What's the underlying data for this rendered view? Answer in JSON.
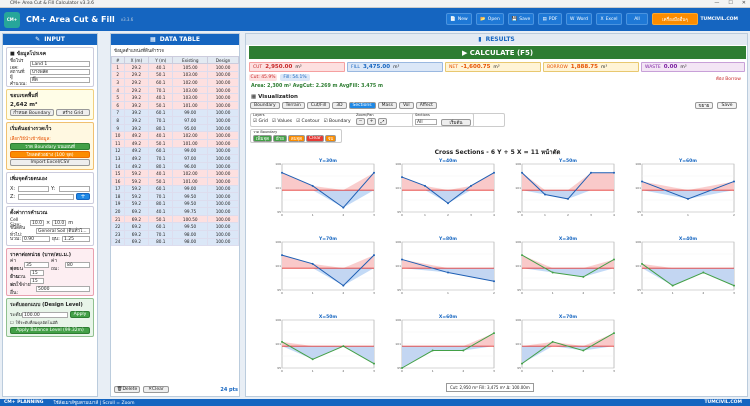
{
  "window": {
    "title": "CM+ Area Cut & Fill Calculator v3.3.6"
  },
  "app": {
    "title": "CM+ Area Cut & Fill",
    "version": "v3.3.6",
    "site": "TUMCIVIL.COM"
  },
  "toolbar": {
    "new": "New",
    "open": "Open",
    "save": "Save",
    "pdf": "PDF",
    "word": "Word",
    "excel": "Excel",
    "all": "All",
    "pro": "เครื่องมืออื่นๆ"
  },
  "left": {
    "header": "INPUT",
    "project": {
      "title": "ข้อมูลโปรเจค",
      "name_label": "ชื่อโปรเจค:",
      "name_value": "Land 1",
      "place_label": "สถานที่:",
      "place_value": "บางพลัด",
      "owner_label": "ผู้คำนวณ:",
      "owner_value": "ดิ๊ด"
    },
    "boundary": {
      "title": "ขอบเขตพื้นที่",
      "area": "2,642 m²",
      "btn1": "กำหนด Boundary",
      "btn2": "สร้าง Grid"
    },
    "import": {
      "title": "เริ่มต้นอย่างรวดเร็ว",
      "hint": "เลือกวิธีนำเข้าข้อมูล:",
      "btn1": "วาด Boundary บนแผนที่",
      "btn2": "โหลดตัวอย่าง (100 จุด)",
      "btn3": "Import Excel/CSV"
    },
    "addpoint": {
      "title": "เพิ่มจุดด้วยตนเอง",
      "x": "X:",
      "y": "Y:",
      "z": "Z:"
    },
    "grid": {
      "title": "ตั้งค่าการคำนวณ",
      "cell_label": "Cell Size:",
      "cell1": "10.0",
      "cell2": "10.0",
      "unit": "m",
      "soil_label": "ชนิดดินทั่วไป:",
      "soil_value": "General Soil (ดินทั่วไ...",
      "swell_label": "บวม:",
      "swell_value": "0.90",
      "shrink_label": "ยุบ:",
      "shrink_value": "1.25"
    },
    "cost": {
      "title": "ราคาต่อหน่วย (บาท/ลบ.ม.)",
      "cut_label": "ค่าขุด:",
      "cut_value": "35",
      "fill_label": "ค่าถม:",
      "fill_value": "80",
      "haul_label": "ค่าขนย้าย:",
      "haul_value": "15",
      "truck_label": "จำนวนรถ:",
      "truck_value": "15",
      "other_label": "ค่าใช้จ่ายอื่น:",
      "other_value": "5000"
    },
    "design": {
      "title": "ระดับออกแบบ (Design Level)",
      "level_label": "ระดับ:",
      "level_value": "100.00",
      "apply": "Apply",
      "check": "ใช้ระดับที่สมดุลอัตโนมัติ",
      "balance": "Apply Balance Level (99.32m)"
    }
  },
  "data": {
    "header": "DATA TABLE",
    "subtitle": "ข้อมูลตำแหน่งที่ดินสำรวจ",
    "cols": [
      "#",
      "X (m)",
      "Y (m)",
      "Existing",
      "Design"
    ],
    "rows": [
      [
        "1",
        "29.2",
        "40.1",
        "105.00",
        "100.00"
      ],
      [
        "2",
        "29.2",
        "50.1",
        "103.00",
        "100.00"
      ],
      [
        "3",
        "29.2",
        "60.1",
        "102.00",
        "100.00"
      ],
      [
        "4",
        "29.2",
        "70.1",
        "103.00",
        "100.00"
      ],
      [
        "5",
        "39.2",
        "40.1",
        "103.00",
        "100.00"
      ],
      [
        "6",
        "39.2",
        "50.1",
        "101.00",
        "100.00"
      ],
      [
        "7",
        "39.2",
        "60.1",
        "99.00",
        "100.00"
      ],
      [
        "8",
        "39.2",
        "70.1",
        "97.00",
        "100.00"
      ],
      [
        "9",
        "39.2",
        "80.1",
        "95.00",
        "100.00"
      ],
      [
        "10",
        "49.2",
        "40.1",
        "102.00",
        "100.00"
      ],
      [
        "11",
        "49.2",
        "50.1",
        "101.00",
        "100.00"
      ],
      [
        "12",
        "49.2",
        "60.1",
        "99.00",
        "100.00"
      ],
      [
        "13",
        "49.2",
        "70.1",
        "97.00",
        "100.00"
      ],
      [
        "14",
        "49.2",
        "80.1",
        "96.00",
        "100.00"
      ],
      [
        "15",
        "59.2",
        "40.1",
        "102.00",
        "100.00"
      ],
      [
        "16",
        "59.2",
        "50.1",
        "101.00",
        "100.00"
      ],
      [
        "17",
        "59.2",
        "60.1",
        "99.00",
        "100.00"
      ],
      [
        "18",
        "59.2",
        "70.1",
        "99.50",
        "100.00"
      ],
      [
        "19",
        "59.2",
        "80.1",
        "99.50",
        "100.00"
      ],
      [
        "20",
        "69.2",
        "40.1",
        "99.75",
        "100.00"
      ],
      [
        "21",
        "69.2",
        "50.1",
        "100.50",
        "100.00"
      ],
      [
        "22",
        "69.2",
        "60.1",
        "99.50",
        "100.00"
      ],
      [
        "23",
        "69.2",
        "70.1",
        "98.00",
        "100.00"
      ],
      [
        "24",
        "69.2",
        "80.1",
        "98.00",
        "100.00"
      ]
    ],
    "delete": "Delete",
    "clear": "Clear",
    "count": "24 pts"
  },
  "results": {
    "header": "RESULTS",
    "calc": "CALCULATE (F5)",
    "cut": {
      "label": "CUT",
      "value": "2,950.00",
      "unit": "m³"
    },
    "fill": {
      "label": "FILL",
      "value": "3,475.00",
      "unit": "m³"
    },
    "net": {
      "label": "NET",
      "value": "-1,600.75",
      "unit": "m³"
    },
    "borrow": {
      "label": "BORROW",
      "value": "1,888.75",
      "unit": "m³"
    },
    "waste": {
      "label": "WASTE",
      "value": "0.00",
      "unit": "m³"
    },
    "cutpct": "Cut: 45.9%",
    "fillpct": "Fill: 54.1%",
    "balance_note": "ต้อง Borrow",
    "summary": "Area: 2,300 m²    AvgCut: 2.269 m    AvgFill: 3.475 m",
    "viz": "Visualization",
    "tabs": [
      "Boundary",
      "Terrain",
      "Cut/Fill",
      "3D",
      "Sections",
      "Mass",
      "Vol",
      "Affect"
    ],
    "zoom": "ขยาย",
    "save": "Save",
    "layers_label": "Layers",
    "layers": [
      "Grid",
      "Values",
      "Contour",
      "Boundary"
    ],
    "zoompan": "Zoom/Pan",
    "sections_label": "Sections",
    "sections_value": "All",
    "reset": "เริ่มต้น",
    "draw_label": "วาด Boundary",
    "draw_btns": [
      "เพิ่มจุด",
      "ย้าย",
      "ลบจุด",
      "Clear",
      "จบ"
    ],
    "chart_title": "Cross Sections - 6 Y + 5 X = 11 หน้าตัด",
    "footer": "Cut: 2,950 m³   Fill: 3,475 m³   Δ: 100.00m"
  },
  "status": {
    "app": "CM+ PLANNING",
    "hint": "ใช้ล้อเมาส์ซูมตามเมาส์ | Scroll = Zoom",
    "site": "TUMCIVIL.COM"
  },
  "chart_data": [
    {
      "type": "line",
      "title": "Y=30m",
      "x": [
        0,
        1,
        2,
        3
      ],
      "series": [
        {
          "values": [
            104,
            101,
            96,
            104
          ]
        }
      ],
      "design": 100,
      "ylim": [
        95,
        106
      ]
    },
    {
      "type": "line",
      "title": "Y=40m",
      "x": [
        0,
        1,
        2,
        3,
        4
      ],
      "series": [
        {
          "values": [
            103,
            101,
            97,
            101,
            104
          ]
        }
      ],
      "design": 100,
      "ylim": [
        95,
        106
      ]
    },
    {
      "type": "line",
      "title": "Y=50m",
      "x": [
        0,
        1,
        2,
        3,
        4
      ],
      "series": [
        {
          "values": [
            104,
            99,
            98,
            104,
            104
          ]
        }
      ],
      "design": 100,
      "ylim": [
        95,
        106
      ]
    },
    {
      "type": "line",
      "title": "Y=60m",
      "x": [
        0,
        1,
        2
      ],
      "series": [
        {
          "values": [
            102,
            98,
            102
          ]
        }
      ],
      "design": 100,
      "ylim": [
        95,
        106
      ]
    },
    {
      "type": "line",
      "title": "Y=70m",
      "x": [
        0,
        1,
        2,
        3
      ],
      "series": [
        {
          "values": [
            103,
            101,
            96,
            103
          ]
        }
      ],
      "design": 100,
      "ylim": [
        95,
        106
      ]
    },
    {
      "type": "line",
      "title": "Y=80m",
      "x": [
        0,
        1,
        2
      ],
      "series": [
        {
          "values": [
            102,
            99,
            97
          ]
        }
      ],
      "design": 100,
      "ylim": [
        95,
        106
      ]
    },
    {
      "type": "line",
      "title": "X=30m",
      "x": [
        0,
        1,
        2,
        3
      ],
      "series": [
        {
          "values": [
            103,
            99,
            98,
            102
          ]
        }
      ],
      "design": 100,
      "ylim": [
        95,
        106
      ]
    },
    {
      "type": "line",
      "title": "X=40m",
      "x": [
        0,
        1,
        2,
        3
      ],
      "series": [
        {
          "values": [
            101,
            96,
            99,
            96
          ]
        }
      ],
      "design": 100,
      "ylim": [
        95,
        106
      ]
    },
    {
      "type": "line",
      "title": "X=50m",
      "x": [
        0,
        1,
        2,
        3
      ],
      "series": [
        {
          "values": [
            101,
            97,
            100,
            96
          ]
        }
      ],
      "design": 100,
      "ylim": [
        95,
        106
      ]
    },
    {
      "type": "line",
      "title": "X=60m",
      "x": [
        0,
        1,
        2,
        3
      ],
      "series": [
        {
          "values": [
            95,
            99,
            99,
            103
          ]
        }
      ],
      "design": 100,
      "ylim": [
        95,
        106
      ]
    },
    {
      "type": "line",
      "title": "X=70m",
      "x": [
        0,
        1,
        2,
        3
      ],
      "series": [
        {
          "values": [
            96,
            101,
            99,
            103
          ]
        }
      ],
      "design": 100,
      "ylim": [
        95,
        106
      ]
    }
  ]
}
